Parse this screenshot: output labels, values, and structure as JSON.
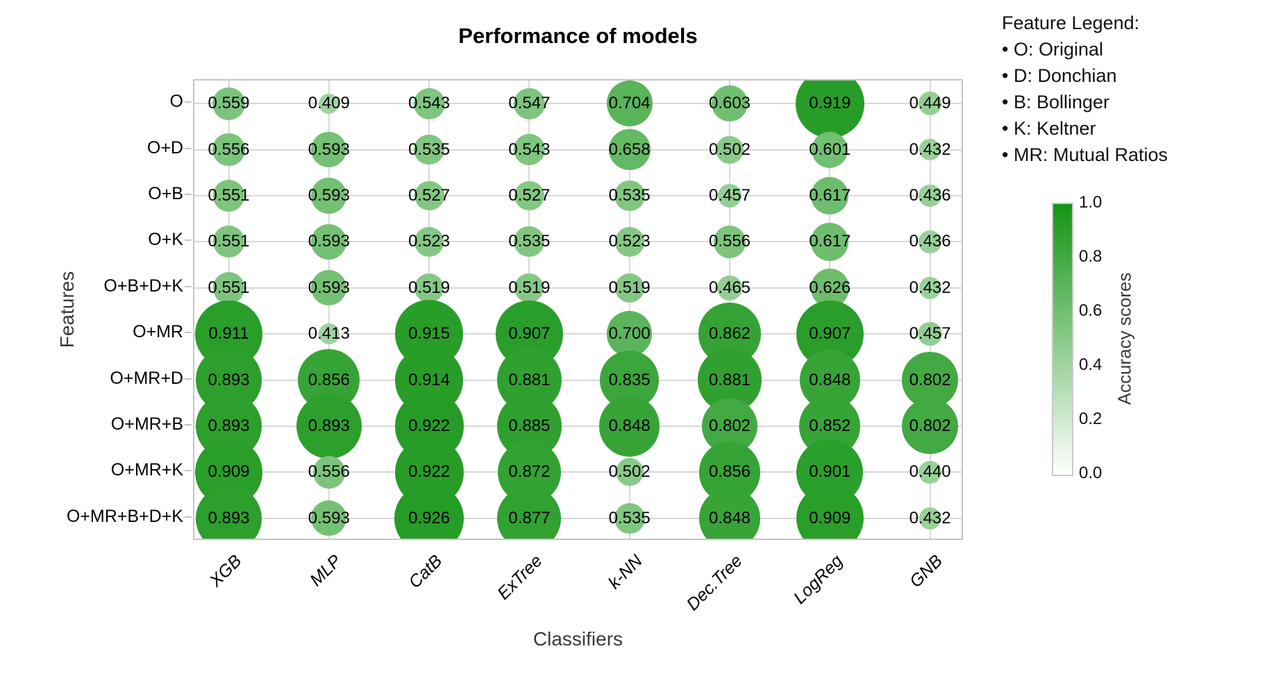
{
  "title": "Performance of models",
  "xlabel": "Classifiers",
  "ylabel": "Features",
  "feature_legend": {
    "heading": "Feature Legend:",
    "bullet": "•",
    "items": [
      "O: Original",
      "D: Donchian",
      "B: Bollinger",
      "K: Keltner",
      "MR: Mutual Ratios"
    ]
  },
  "colorbar": {
    "label": "Accuracy scores",
    "ticks": [
      "1.0",
      "0.8",
      "0.6",
      "0.4",
      "0.2",
      "0.0"
    ],
    "min_color": "#ffffff",
    "max_color": "#149414"
  },
  "chart_data": {
    "type": "bubble",
    "title": "Performance of models",
    "xlabel": "Classifiers",
    "ylabel": "Features",
    "columns": [
      "XGB",
      "MLP",
      "CatB",
      "ExTree",
      "k-NN",
      "Dec.Tree",
      "LogReg",
      "GNB"
    ],
    "rows": [
      "O",
      "O+D",
      "O+B",
      "O+K",
      "O+B+D+K",
      "O+MR",
      "O+MR+D",
      "O+MR+B",
      "O+MR+K",
      "O+MR+B+D+K"
    ],
    "values": [
      [
        0.559,
        0.409,
        0.543,
        0.547,
        0.704,
        0.603,
        0.919,
        0.449
      ],
      [
        0.556,
        0.593,
        0.535,
        0.543,
        0.658,
        0.502,
        0.601,
        0.432
      ],
      [
        0.551,
        0.593,
        0.527,
        0.527,
        0.535,
        0.457,
        0.617,
        0.436
      ],
      [
        0.551,
        0.593,
        0.523,
        0.535,
        0.523,
        0.556,
        0.617,
        0.436
      ],
      [
        0.551,
        0.593,
        0.519,
        0.519,
        0.519,
        0.465,
        0.626,
        0.432
      ],
      [
        0.911,
        0.413,
        0.915,
        0.907,
        0.7,
        0.862,
        0.907,
        0.457
      ],
      [
        0.893,
        0.856,
        0.914,
        0.881,
        0.835,
        0.881,
        0.848,
        0.802
      ],
      [
        0.893,
        0.893,
        0.922,
        0.885,
        0.848,
        0.802,
        0.852,
        0.802
      ],
      [
        0.909,
        0.556,
        0.922,
        0.872,
        0.502,
        0.856,
        0.901,
        0.44
      ],
      [
        0.893,
        0.593,
        0.926,
        0.877,
        0.535,
        0.848,
        0.909,
        0.432
      ]
    ],
    "value_range": [
      0.0,
      1.0
    ],
    "value_format_decimals": 3,
    "grid": true,
    "legend_position": "right"
  }
}
